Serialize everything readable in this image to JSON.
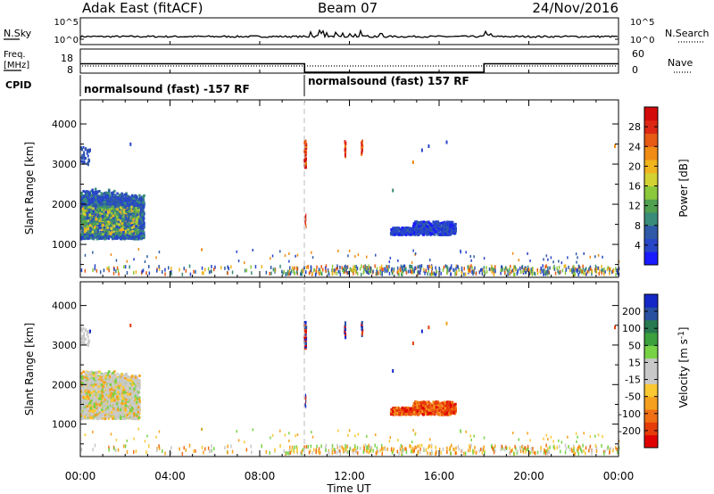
{
  "header": {
    "station": "Adak East (fitACF)",
    "beam": "Beam 07",
    "date": "24/Nov/2016"
  },
  "noise_panel": {
    "left_label": "N.Sky",
    "right_label": "N.Search",
    "left_ticks": [
      "10^5",
      "10^0"
    ],
    "right_ticks": [
      "10^5",
      "10^0"
    ]
  },
  "freq_panel": {
    "left_label_1": "Freq.",
    "left_label_2": "[MHz]",
    "left_ticks": [
      "18",
      "8"
    ],
    "right_label": "Nave",
    "right_ticks": [
      "60",
      "0"
    ],
    "freq_steps": [
      {
        "start_hour": 0,
        "end_hour": 10,
        "level": 13
      },
      {
        "start_hour": 10,
        "end_hour": 18,
        "level": 9.5
      },
      {
        "start_hour": 18,
        "end_hour": 24,
        "level": 13
      }
    ]
  },
  "cpid": {
    "label": "CPID",
    "segments": [
      {
        "text": "normalsound (fast) -157 RF",
        "start_hour": 0
      },
      {
        "text": "normalsound (fast) 157 RF",
        "start_hour": 10
      }
    ]
  },
  "chart_data": [
    {
      "type": "heatmap",
      "xlabel": "Time UT",
      "ylabel": "Slant Range [km]",
      "xlim": [
        0,
        24
      ],
      "ylim": [
        180,
        4600
      ],
      "x_ticks": [
        "00:00",
        "04:00",
        "08:00",
        "12:00",
        "16:00",
        "20:00",
        "00:00"
      ],
      "x_tick_hours": [
        0,
        4,
        8,
        12,
        16,
        20,
        24
      ],
      "y_ticks": [
        1000,
        2000,
        3000,
        4000
      ],
      "colorbar": {
        "label": "Power [dB]",
        "ticks": [
          "28",
          "24",
          "20",
          "16",
          "12",
          "8",
          "4"
        ],
        "colors": [
          "#1a1aff",
          "#2846c8",
          "#2e5aa8",
          "#3a8c7a",
          "#50a050",
          "#8cc83c",
          "#d2d232",
          "#f0b41e",
          "#f08c14",
          "#e65a14",
          "#dc2814",
          "#d20a0a"
        ]
      },
      "echo_regions": [
        {
          "t": [
            0.0,
            2.8
          ],
          "r": [
            1100,
            2400
          ],
          "values": "8-24 dB"
        },
        {
          "t": [
            13.8,
            16.7
          ],
          "r": [
            1200,
            1500
          ],
          "values": "4-8 dB"
        },
        {
          "t": [
            9.95,
            10.05
          ],
          "r": [
            2900,
            3550
          ],
          "values": "20-28 dB"
        }
      ]
    },
    {
      "type": "heatmap",
      "xlabel": "Time UT",
      "ylabel": "Slant Range [km]",
      "xlim": [
        0,
        24
      ],
      "ylim": [
        180,
        4600
      ],
      "x_ticks": [
        "00:00",
        "04:00",
        "08:00",
        "12:00",
        "16:00",
        "20:00",
        "00:00"
      ],
      "x_tick_hours": [
        0,
        4,
        8,
        12,
        16,
        20,
        24
      ],
      "y_ticks": [
        1000,
        2000,
        3000,
        4000
      ],
      "colorbar": {
        "label": "Velocity [m s^-1]",
        "ticks": [
          "200",
          "100",
          "50",
          "15",
          "-15",
          "-50",
          "-100",
          "-200"
        ],
        "colors": [
          "#e10000",
          "#e63c0a",
          "#f06e14",
          "#f5a01e",
          "#fac832",
          "#c8c8c8",
          "#c8c8c8",
          "#78d246",
          "#3ca03c",
          "#287850",
          "#2850a0",
          "#1428c8"
        ]
      },
      "echo_regions": [
        {
          "t": [
            0.0,
            2.6
          ],
          "r": [
            1100,
            2300
          ],
          "values": "-15 to 15"
        },
        {
          "t": [
            13.8,
            16.7
          ],
          "r": [
            1200,
            1550
          ],
          "values": "-50 to -200"
        },
        {
          "t": [
            9.95,
            10.05
          ],
          "r": [
            2900,
            3550
          ],
          "values": "-100 to -200"
        }
      ]
    }
  ]
}
